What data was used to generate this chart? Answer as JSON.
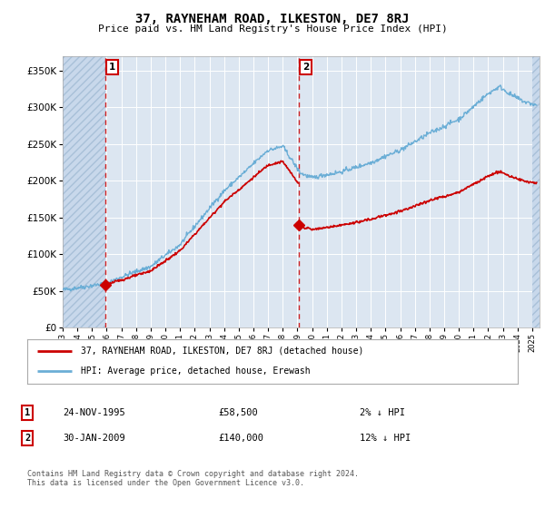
{
  "title": "37, RAYNEHAM ROAD, ILKESTON, DE7 8RJ",
  "subtitle": "Price paid vs. HM Land Registry's House Price Index (HPI)",
  "background_color": "#ffffff",
  "plot_bg_color": "#dce6f1",
  "grid_color": "#ffffff",
  "ylim": [
    0,
    370000
  ],
  "yticks": [
    0,
    50000,
    100000,
    150000,
    200000,
    250000,
    300000,
    350000
  ],
  "ytick_labels": [
    "£0",
    "£50K",
    "£100K",
    "£150K",
    "£200K",
    "£250K",
    "£300K",
    "£350K"
  ],
  "sale1_date_x": 1995.9,
  "sale1_price": 58500,
  "sale2_date_x": 2009.08,
  "sale2_price": 140000,
  "hpi_color": "#6baed6",
  "price_paid_color": "#cc0000",
  "marker_color": "#cc0000",
  "legend_label_price": "37, RAYNEHAM ROAD, ILKESTON, DE7 8RJ (detached house)",
  "legend_label_hpi": "HPI: Average price, detached house, Erewash",
  "note1_date": "24-NOV-1995",
  "note1_price": "£58,500",
  "note1_hpi": "2% ↓ HPI",
  "note2_date": "30-JAN-2009",
  "note2_price": "£140,000",
  "note2_hpi": "12% ↓ HPI",
  "footer": "Contains HM Land Registry data © Crown copyright and database right 2024.\nThis data is licensed under the Open Government Licence v3.0.",
  "xmin": 1993,
  "xmax": 2025.5,
  "hatch_right_start": 2025.0
}
